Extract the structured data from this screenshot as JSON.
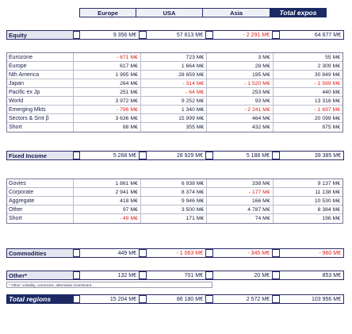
{
  "columns": [
    "Europe",
    "USA",
    "Asia",
    "Total expos"
  ],
  "sections": {
    "equity": {
      "label": "Equity",
      "values": [
        "9 356 M€",
        "57 613 M€",
        "- 2 291 M€",
        "64 677 M€"
      ],
      "neg": [
        false,
        false,
        true,
        false
      ]
    },
    "fixed_income": {
      "label": "Fixed Income",
      "values": [
        "5 268 M€",
        "28 929 M€",
        "5 188 M€",
        "39 385 M€"
      ],
      "neg": [
        false,
        false,
        false,
        false
      ]
    },
    "commodities": {
      "label": "Commodities",
      "values": [
        "449 M€",
        "- 1 063 M€",
        "- 345 M€",
        "- 960 M€"
      ],
      "neg": [
        false,
        true,
        true,
        true
      ]
    },
    "other": {
      "label": "Other*",
      "values": [
        "132 M€",
        "701 M€",
        "20 M€",
        "853 M€"
      ],
      "neg": [
        false,
        false,
        false,
        false
      ]
    },
    "total": {
      "label": "Total regions",
      "values": [
        "15 204 M€",
        "86 180 M€",
        "2 572 M€",
        "103 956 M€"
      ],
      "neg": [
        false,
        false,
        false,
        false
      ]
    }
  },
  "equity_rows": [
    {
      "label": "Eurozone",
      "values": [
        "- 671 M€",
        "723 M€",
        "3 M€",
        "55 M€"
      ],
      "neg": [
        true,
        false,
        false,
        false
      ]
    },
    {
      "label": "Europe",
      "values": [
        "617 M€",
        "1 664 M€",
        "28 M€",
        "2 309 M€"
      ],
      "neg": [
        false,
        false,
        false,
        false
      ]
    },
    {
      "label": "Nth America",
      "values": [
        "1 995 M€",
        "28 659 M€",
        "195 M€",
        "30 849 M€"
      ],
      "neg": [
        false,
        false,
        false,
        false
      ]
    },
    {
      "label": "Japan",
      "values": [
        "264 M€",
        "- 314 M€",
        "- 1 520 M€",
        "- 1 569 M€"
      ],
      "neg": [
        false,
        true,
        true,
        true
      ]
    },
    {
      "label": "Pacific ex Jp",
      "values": [
        "251 M€",
        "- 64 M€",
        "253 M€",
        "440 M€"
      ],
      "neg": [
        false,
        true,
        false,
        false
      ]
    },
    {
      "label": "World",
      "values": [
        "3 972 M€",
        "9 252 M€",
        "93 M€",
        "13 316 M€"
      ],
      "neg": [
        false,
        false,
        false,
        false
      ]
    },
    {
      "label": "Emerging Mkts",
      "values": [
        "- 796 M€",
        "1 340 M€",
        "- 2 241 M€",
        "- 1 697 M€"
      ],
      "neg": [
        true,
        false,
        true,
        true
      ]
    },
    {
      "label": "Sectors & Smt β",
      "values": [
        "3 636 M€",
        "15 999 M€",
        "464 M€",
        "20 099 M€"
      ],
      "neg": [
        false,
        false,
        false,
        false
      ]
    },
    {
      "label": "Short",
      "values": [
        "88 M€",
        "355 M€",
        "432 M€",
        "875 M€"
      ],
      "neg": [
        false,
        false,
        false,
        false
      ]
    }
  ],
  "fixed_income_rows": [
    {
      "label": "Govies",
      "values": [
        "1 861 M€",
        "6 938 M€",
        "338 M€",
        "9 137 M€"
      ],
      "neg": [
        false,
        false,
        false,
        false
      ]
    },
    {
      "label": "Corporate",
      "values": [
        "2 941 M€",
        "8 374 M€",
        "- 177 M€",
        "11 138 M€"
      ],
      "neg": [
        false,
        false,
        true,
        false
      ]
    },
    {
      "label": "Aggregate",
      "values": [
        "418 M€",
        "9 946 M€",
        "166 M€",
        "10 530 M€"
      ],
      "neg": [
        false,
        false,
        false,
        false
      ]
    },
    {
      "label": "Other",
      "values": [
        "97 M€",
        "3 500 M€",
        "4 787 M€",
        "8 384 M€"
      ],
      "neg": [
        false,
        false,
        false,
        false
      ]
    },
    {
      "label": "Short",
      "values": [
        "- 49 M€",
        "171 M€",
        "74 M€",
        "196 M€"
      ],
      "neg": [
        true,
        false,
        false,
        false
      ]
    }
  ],
  "footnote": "* Other: volatility, currencies, alternative investment..."
}
